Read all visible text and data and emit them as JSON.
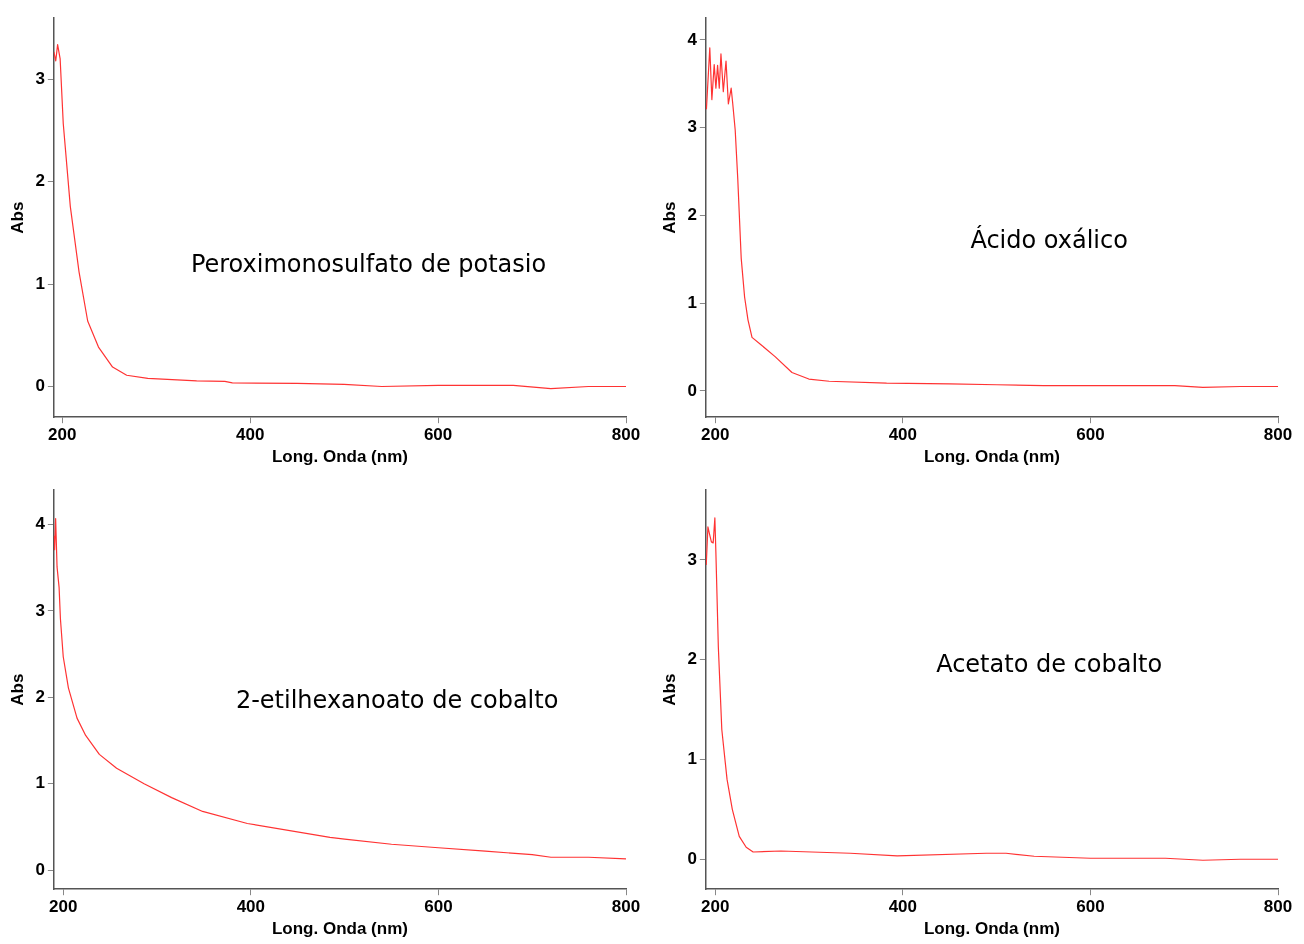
{
  "chart_data": [
    {
      "type": "line",
      "xlabel": "Long. Onda (nm)",
      "ylabel": "Abs",
      "annotations": [
        "Peroximonosulfato de potasio"
      ],
      "color": "#ff3333",
      "grid": false,
      "legend": false,
      "xlim": [
        191,
        800
      ],
      "xticks": [
        200,
        400,
        600,
        800
      ],
      "ylim": [
        -0.3,
        3.6
      ],
      "yticks": [
        0,
        1,
        2,
        3
      ],
      "x": [
        191,
        193,
        195,
        197.7,
        201,
        208.5,
        217.8,
        227,
        238.5,
        253.5,
        268.5,
        291,
        343,
        373,
        381,
        450,
        500,
        540,
        600,
        680,
        720,
        760,
        800
      ],
      "values": [
        3.27,
        3.18,
        3.34,
        3.2,
        2.57,
        1.76,
        1.12,
        0.64,
        0.385,
        0.19,
        0.11,
        0.08,
        0.055,
        0.05,
        0.035,
        0.03,
        0.02,
        0,
        0.01,
        0.01,
        -0.02,
        0,
        0
      ]
    },
    {
      "type": "line",
      "xlabel": "Long. Onda (nm)",
      "ylabel": "Abs",
      "annotations": [
        "Ácido oxálico"
      ],
      "color": "#ff3333",
      "grid": false,
      "legend": false,
      "xlim": [
        190,
        800
      ],
      "xticks": [
        200,
        400,
        600,
        800
      ],
      "ylim": [
        -0.3,
        4.25
      ],
      "yticks": [
        0,
        1,
        2,
        3,
        4
      ],
      "x": [
        190.6,
        194.2,
        196.4,
        198.9,
        200.7,
        202.5,
        204.3,
        206.1,
        208.6,
        211.5,
        214,
        217,
        218.7,
        221.3,
        224,
        227.7,
        231.3,
        234.9,
        239.2,
        249.4,
        263.8,
        281.8,
        299.8,
        321.4,
        382.7,
        450,
        500,
        550,
        600,
        690,
        720,
        760,
        800
      ],
      "values": [
        3.21,
        3.91,
        3.32,
        3.72,
        3.45,
        3.71,
        3.45,
        3.84,
        3.41,
        3.76,
        3.27,
        3.45,
        3.27,
        2.97,
        2.42,
        1.51,
        1.07,
        0.81,
        0.61,
        0.52,
        0.39,
        0.21,
        0.135,
        0.11,
        0.088,
        0.08,
        0.07,
        0.06,
        0.06,
        0.06,
        0.04,
        0.05,
        0.05
      ]
    },
    {
      "type": "line",
      "xlabel": "Long. Onda (nm)",
      "ylabel": "Abs",
      "annotations": [
        "2-etilhexanoato de cobalto"
      ],
      "color": "#ff3333",
      "grid": false,
      "legend": false,
      "xlim": [
        190,
        800
      ],
      "xticks": [
        200,
        400,
        600,
        800
      ],
      "ylim": [
        -0.22,
        4.4
      ],
      "yticks": [
        0,
        1,
        2,
        3,
        4
      ],
      "x": [
        190,
        190.8,
        191.9,
        193.4,
        195.6,
        197,
        200,
        205.5,
        214.7,
        223.9,
        238.5,
        256.9,
        286.2,
        315.6,
        348.6,
        396.3,
        484.4,
        500,
        550,
        600,
        650,
        700,
        720,
        760,
        800
      ],
      "values": [
        3.87,
        3.71,
        4.07,
        3.51,
        3.27,
        2.91,
        2.47,
        2.11,
        1.76,
        1.56,
        1.34,
        1.18,
        1.0,
        0.84,
        0.68,
        0.54,
        0.38,
        0.36,
        0.3,
        0.26,
        0.22,
        0.18,
        0.15,
        0.15,
        0.13
      ]
    },
    {
      "type": "line",
      "xlabel": "Long. Onda (nm)",
      "ylabel": "Abs",
      "annotations": [
        "Acetato de cobalto"
      ],
      "color": "#ff3333",
      "grid": false,
      "legend": false,
      "xlim": [
        190,
        800
      ],
      "xticks": [
        200,
        400,
        600,
        800
      ],
      "ylim": [
        -0.3,
        3.7
      ],
      "yticks": [
        0,
        1,
        2,
        3
      ],
      "x": [
        190.4,
        192.2,
        194.1,
        195.9,
        197.8,
        199.6,
        200.7,
        203.3,
        207,
        212.6,
        218.2,
        225.6,
        233,
        240.4,
        270,
        344,
        394,
        489,
        510,
        540,
        600,
        680,
        720,
        760,
        800
      ],
      "values": [
        2.95,
        3.33,
        3.25,
        3.18,
        3.17,
        3.42,
        3.07,
        2.13,
        1.3,
        0.8,
        0.5,
        0.23,
        0.12,
        0.073,
        0.083,
        0.06,
        0.033,
        0.06,
        0.06,
        0.03,
        0.01,
        0.01,
        -0.01,
        0,
        0
      ]
    }
  ]
}
